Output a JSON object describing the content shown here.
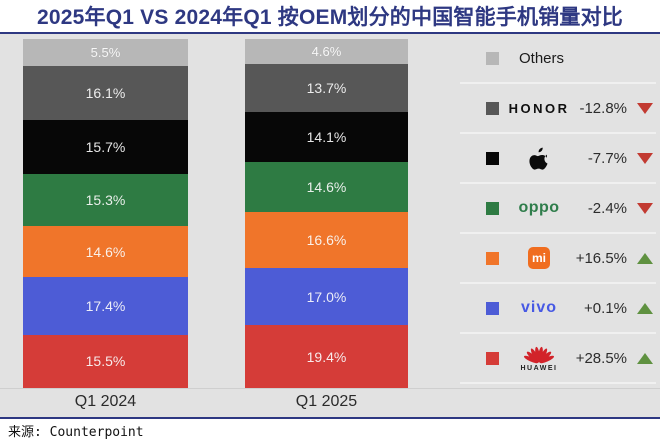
{
  "title": "2025年Q1 VS 2024年Q1 按OEM划分的中国智能手机销量对比",
  "source": "来源: Counterpoint",
  "colors": {
    "accent_navy": "#2e3882",
    "chart_background": "#e2e2e2",
    "trend_up_green": "#5f9140",
    "trend_down_red": "#c23a31",
    "segment_label": "#f5f5f5"
  },
  "chart_data": {
    "type": "bar",
    "stacked": true,
    "orientation": "vertical",
    "unit": "%",
    "legend_position": "right",
    "categories": [
      "Q1 2024",
      "Q1 2025"
    ],
    "series": [
      {
        "brand": "others",
        "logo_text": "Others",
        "values": [
          5.5,
          4.6
        ],
        "color": "#b7b7b7",
        "yoy_change": "",
        "trend": ""
      },
      {
        "brand": "honor",
        "logo_text": "HONOR",
        "values": [
          16.1,
          13.7
        ],
        "color": "#575757",
        "yoy_change": "-12.8%",
        "trend": "down"
      },
      {
        "brand": "apple",
        "logo_text": "Apple",
        "values": [
          15.7,
          14.1
        ],
        "color": "#070707",
        "yoy_change": "-7.7%",
        "trend": "down"
      },
      {
        "brand": "oppo",
        "logo_text": "oppo",
        "values": [
          15.3,
          14.6
        ],
        "color": "#2e7b43",
        "yoy_change": "-2.4%",
        "trend": "down"
      },
      {
        "brand": "xiaomi",
        "logo_text": "mi",
        "values": [
          14.6,
          16.6
        ],
        "color": "#f0752a",
        "yoy_change": "+16.5%",
        "trend": "up"
      },
      {
        "brand": "vivo",
        "logo_text": "vivo",
        "values": [
          17.4,
          17.0
        ],
        "color": "#4d5cd6",
        "yoy_change": "+0.1%",
        "trend": "up"
      },
      {
        "brand": "huawei",
        "logo_text": "HUAWEI",
        "values": [
          15.5,
          19.4
        ],
        "color": "#d53c38",
        "yoy_change": "+28.5%",
        "trend": "up"
      }
    ]
  }
}
